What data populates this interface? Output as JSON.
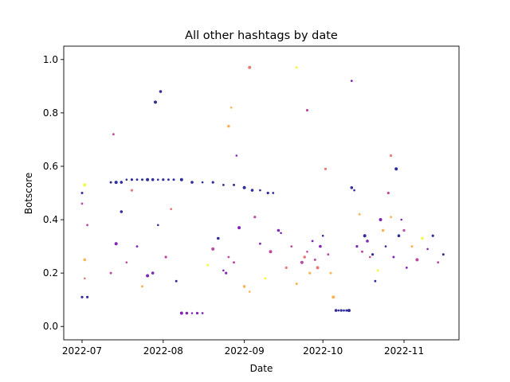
{
  "chart_data": {
    "type": "scatter",
    "title": "All other hashtags by date",
    "xlabel": "Date",
    "ylabel": "Botscore",
    "xlim": [
      "2022-06-24",
      "2022-11-22"
    ],
    "ylim": [
      -0.05,
      1.05
    ],
    "x_ticks": [
      "2022-07",
      "2022-08",
      "2022-09",
      "2022-10",
      "2022-11"
    ],
    "x_tick_dates": [
      "2022-07-01",
      "2022-08-01",
      "2022-09-01",
      "2022-10-01",
      "2022-11-01"
    ],
    "y_ticks": [
      "0.0",
      "0.2",
      "0.4",
      "0.6",
      "0.8",
      "1.0"
    ],
    "y_tick_values": [
      0.0,
      0.2,
      0.4,
      0.6,
      0.8,
      1.0
    ],
    "grid": false,
    "colormap": [
      "#0d0887",
      "#6a00a8",
      "#b12a90",
      "#e16462",
      "#fca636",
      "#f0f921"
    ],
    "points": [
      [
        "2022-07-01",
        0.11,
        0
      ],
      [
        "2022-07-01",
        0.46,
        2
      ],
      [
        "2022-07-01",
        0.5,
        0
      ],
      [
        "2022-07-02",
        0.53,
        5
      ],
      [
        "2022-07-02",
        0.25,
        4
      ],
      [
        "2022-07-02",
        0.18,
        3
      ],
      [
        "2022-07-03",
        0.11,
        0
      ],
      [
        "2022-07-03",
        0.38,
        2
      ],
      [
        "2022-07-12",
        0.54,
        0
      ],
      [
        "2022-07-14",
        0.54,
        0
      ],
      [
        "2022-07-16",
        0.54,
        0
      ],
      [
        "2022-07-18",
        0.55,
        0
      ],
      [
        "2022-07-20",
        0.55,
        0
      ],
      [
        "2022-07-22",
        0.55,
        0
      ],
      [
        "2022-07-24",
        0.55,
        0
      ],
      [
        "2022-07-26",
        0.55,
        0
      ],
      [
        "2022-07-28",
        0.55,
        0
      ],
      [
        "2022-07-30",
        0.55,
        0
      ],
      [
        "2022-08-01",
        0.55,
        0
      ],
      [
        "2022-08-03",
        0.55,
        0
      ],
      [
        "2022-08-05",
        0.55,
        0
      ],
      [
        "2022-08-08",
        0.55,
        0
      ],
      [
        "2022-08-12",
        0.54,
        0
      ],
      [
        "2022-08-16",
        0.54,
        0
      ],
      [
        "2022-08-20",
        0.54,
        0
      ],
      [
        "2022-08-24",
        0.53,
        0
      ],
      [
        "2022-08-28",
        0.53,
        0
      ],
      [
        "2022-09-01",
        0.52,
        0
      ],
      [
        "2022-09-04",
        0.51,
        0
      ],
      [
        "2022-09-07",
        0.51,
        0
      ],
      [
        "2022-09-10",
        0.5,
        0
      ],
      [
        "2022-09-12",
        0.5,
        0
      ],
      [
        "2022-07-12",
        0.2,
        2
      ],
      [
        "2022-07-14",
        0.31,
        1
      ],
      [
        "2022-07-16",
        0.43,
        0
      ],
      [
        "2022-07-18",
        0.24,
        2
      ],
      [
        "2022-07-20",
        0.51,
        3
      ],
      [
        "2022-07-22",
        0.3,
        1
      ],
      [
        "2022-07-24",
        0.15,
        4
      ],
      [
        "2022-07-26",
        0.19,
        1
      ],
      [
        "2022-07-28",
        0.2,
        1
      ],
      [
        "2022-07-30",
        0.38,
        0
      ],
      [
        "2022-08-02",
        0.26,
        2
      ],
      [
        "2022-08-04",
        0.44,
        3
      ],
      [
        "2022-08-06",
        0.17,
        0
      ],
      [
        "2022-08-08",
        0.05,
        1
      ],
      [
        "2022-08-10",
        0.05,
        1
      ],
      [
        "2022-08-12",
        0.05,
        1
      ],
      [
        "2022-08-14",
        0.05,
        1
      ],
      [
        "2022-08-16",
        0.05,
        1
      ],
      [
        "2022-08-18",
        0.23,
        5
      ],
      [
        "2022-08-20",
        0.29,
        2
      ],
      [
        "2022-08-22",
        0.33,
        0
      ],
      [
        "2022-08-24",
        0.21,
        1
      ],
      [
        "2022-08-25",
        0.2,
        1
      ],
      [
        "2022-08-26",
        0.26,
        2
      ],
      [
        "2022-08-28",
        0.24,
        2
      ],
      [
        "2022-08-30",
        0.37,
        1
      ],
      [
        "2022-09-01",
        0.15,
        4
      ],
      [
        "2022-09-03",
        0.13,
        4
      ],
      [
        "2022-09-05",
        0.41,
        2
      ],
      [
        "2022-09-07",
        0.31,
        1
      ],
      [
        "2022-09-09",
        0.18,
        5
      ],
      [
        "2022-09-11",
        0.28,
        2
      ],
      [
        "2022-09-14",
        0.36,
        1
      ],
      [
        "2022-09-15",
        0.35,
        1
      ],
      [
        "2022-09-17",
        0.22,
        3
      ],
      [
        "2022-09-19",
        0.3,
        2
      ],
      [
        "2022-09-21",
        0.16,
        4
      ],
      [
        "2022-09-23",
        0.24,
        2
      ],
      [
        "2022-09-24",
        0.26,
        3
      ],
      [
        "2022-09-25",
        0.28,
        2
      ],
      [
        "2022-09-26",
        0.2,
        4
      ],
      [
        "2022-09-27",
        0.32,
        1
      ],
      [
        "2022-09-28",
        0.25,
        2
      ],
      [
        "2022-09-29",
        0.22,
        3
      ],
      [
        "2022-09-30",
        0.3,
        1
      ],
      [
        "2022-10-01",
        0.34,
        0
      ],
      [
        "2022-10-02",
        0.59,
        3
      ],
      [
        "2022-10-03",
        0.27,
        2
      ],
      [
        "2022-10-04",
        0.2,
        4
      ],
      [
        "2022-10-05",
        0.11,
        4
      ],
      [
        "2022-10-06",
        0.06,
        0
      ],
      [
        "2022-10-07",
        0.06,
        0
      ],
      [
        "2022-10-08",
        0.06,
        0
      ],
      [
        "2022-10-09",
        0.06,
        0
      ],
      [
        "2022-10-10",
        0.06,
        0
      ],
      [
        "2022-10-11",
        0.06,
        0
      ],
      [
        "2022-10-12",
        0.52,
        0
      ],
      [
        "2022-10-13",
        0.51,
        0
      ],
      [
        "2022-10-14",
        0.3,
        1
      ],
      [
        "2022-10-15",
        0.42,
        4
      ],
      [
        "2022-10-16",
        0.28,
        2
      ],
      [
        "2022-10-17",
        0.34,
        0
      ],
      [
        "2022-10-18",
        0.32,
        1
      ],
      [
        "2022-10-19",
        0.26,
        2
      ],
      [
        "2022-10-20",
        0.27,
        0
      ],
      [
        "2022-10-21",
        0.17,
        0
      ],
      [
        "2022-10-22",
        0.21,
        5
      ],
      [
        "2022-10-23",
        0.4,
        1
      ],
      [
        "2022-10-24",
        0.36,
        4
      ],
      [
        "2022-10-25",
        0.3,
        0
      ],
      [
        "2022-10-26",
        0.5,
        2
      ],
      [
        "2022-10-27",
        0.41,
        4
      ],
      [
        "2022-10-28",
        0.26,
        1
      ],
      [
        "2022-10-29",
        0.59,
        0
      ],
      [
        "2022-10-30",
        0.34,
        0
      ],
      [
        "2022-10-31",
        0.4,
        1
      ],
      [
        "2022-11-01",
        0.36,
        2
      ],
      [
        "2022-11-02",
        0.22,
        1
      ],
      [
        "2022-11-04",
        0.3,
        4
      ],
      [
        "2022-11-06",
        0.25,
        2
      ],
      [
        "2022-11-08",
        0.33,
        5
      ],
      [
        "2022-11-10",
        0.29,
        1
      ],
      [
        "2022-11-12",
        0.34,
        0
      ],
      [
        "2022-11-14",
        0.24,
        2
      ],
      [
        "2022-11-16",
        0.27,
        0
      ],
      [
        "2022-07-29",
        0.84,
        0
      ],
      [
        "2022-07-31",
        0.88,
        0
      ],
      [
        "2022-08-27",
        0.82,
        4
      ],
      [
        "2022-09-25",
        0.81,
        2
      ],
      [
        "2022-10-12",
        0.92,
        1
      ],
      [
        "2022-09-21",
        0.97,
        5
      ],
      [
        "2022-09-03",
        0.97,
        3
      ],
      [
        "2022-08-26",
        0.75,
        4
      ],
      [
        "2022-08-29",
        0.64,
        1
      ],
      [
        "2022-10-27",
        0.64,
        3
      ],
      [
        "2022-07-13",
        0.72,
        2
      ]
    ]
  }
}
